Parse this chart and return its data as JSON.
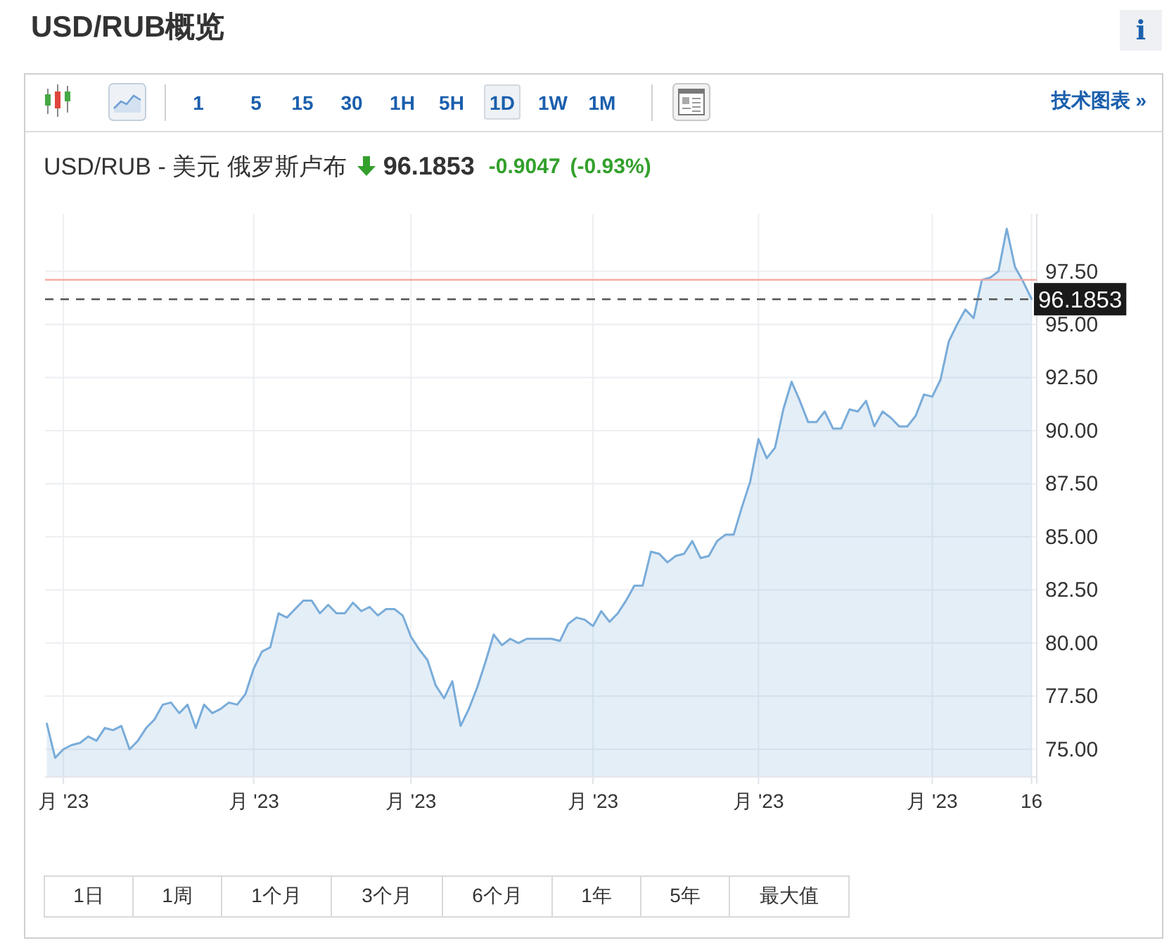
{
  "chart_data": {
    "type": "area",
    "title": "USD/RUB概览",
    "subtitle": "USD/RUB - 美元 俄罗斯卢布",
    "categories": [
      null,
      null,
      "月 '23",
      null,
      null,
      null,
      null,
      null,
      null,
      null,
      null,
      null,
      null,
      null,
      null,
      null,
      null,
      null,
      null,
      null,
      null,
      null,
      null,
      null,
      null,
      "月 '23",
      null,
      null,
      null,
      null,
      null,
      null,
      null,
      null,
      null,
      null,
      null,
      null,
      null,
      null,
      null,
      null,
      null,
      null,
      "月 '23",
      null,
      null,
      null,
      null,
      null,
      null,
      null,
      null,
      null,
      null,
      null,
      null,
      null,
      null,
      null,
      null,
      null,
      null,
      null,
      null,
      null,
      "月 '23",
      null,
      null,
      null,
      null,
      null,
      null,
      null,
      null,
      null,
      null,
      null,
      null,
      null,
      null,
      null,
      null,
      null,
      null,
      null,
      "月 '23",
      null,
      null,
      null,
      null,
      null,
      null,
      null,
      null,
      null,
      null,
      null,
      null,
      null,
      null,
      null,
      null,
      null,
      null,
      null,
      null,
      "月 '23",
      null,
      null,
      null,
      null,
      null,
      null,
      null,
      null,
      null,
      null,
      null,
      "16"
    ],
    "values": [
      76.2,
      74.6,
      75.0,
      75.2,
      75.3,
      75.6,
      75.4,
      76.0,
      75.9,
      76.1,
      75.0,
      75.4,
      76.0,
      76.4,
      77.1,
      77.2,
      76.7,
      77.1,
      76.0,
      77.1,
      76.7,
      76.9,
      77.2,
      77.1,
      77.6,
      78.8,
      79.6,
      79.8,
      81.4,
      81.2,
      81.6,
      82.0,
      82.0,
      81.4,
      81.8,
      81.4,
      81.4,
      81.9,
      81.5,
      81.7,
      81.3,
      81.6,
      81.6,
      81.3,
      80.3,
      79.7,
      79.2,
      78.0,
      77.4,
      78.2,
      76.1,
      76.9,
      77.9,
      79.1,
      80.4,
      79.9,
      80.2,
      80.0,
      80.2,
      80.2,
      80.2,
      80.2,
      80.1,
      80.9,
      81.2,
      81.1,
      80.8,
      81.5,
      81.0,
      81.4,
      82.0,
      82.7,
      82.7,
      84.3,
      84.2,
      83.8,
      84.1,
      84.2,
      84.8,
      84.0,
      84.1,
      84.8,
      85.1,
      85.1,
      86.4,
      87.6,
      89.6,
      88.7,
      89.2,
      91.0,
      92.3,
      91.4,
      90.4,
      90.4,
      90.9,
      90.1,
      90.1,
      91.0,
      90.9,
      91.4,
      90.2,
      90.9,
      90.6,
      90.2,
      90.2,
      90.7,
      91.7,
      91.6,
      92.4,
      94.2,
      95.0,
      95.7,
      95.3,
      97.1,
      97.2,
      97.5,
      99.5,
      97.7,
      97.0,
      96.2
    ],
    "color": "#79acd9",
    "ylim": [
      73.7,
      100.2
    ],
    "yticks": [
      {
        "value": 75,
        "label": "75.00"
      },
      {
        "value": 77.5,
        "label": "77.50"
      },
      {
        "value": 80,
        "label": "80.00"
      },
      {
        "value": 82.5,
        "label": "82.50"
      },
      {
        "value": 85,
        "label": "85.00"
      },
      {
        "value": 87.5,
        "label": "87.50"
      },
      {
        "value": 90,
        "label": "90.00"
      },
      {
        "value": 92.5,
        "label": "92.50"
      },
      {
        "value": 95,
        "label": "95.00"
      },
      {
        "value": 97.5,
        "label": "97.50"
      }
    ],
    "grid": true,
    "ref_lines": [
      {
        "axis": "y",
        "value": 97.1,
        "color": "#f6a39c"
      },
      {
        "axis": "y",
        "value": 96.1853,
        "label": "96.1853",
        "line_style": "dashed",
        "color": "#555555"
      }
    ],
    "annotations": [
      "96.1853",
      "-0.9047",
      "(-0.93%)",
      "i",
      "1",
      "5",
      "15",
      "30",
      "1H",
      "5H",
      "1D",
      "1W",
      "1M",
      "技术图表 »",
      "1日",
      "1周",
      "1个月",
      "3个月",
      "6个月",
      "1年",
      "5年",
      "最大值"
    ]
  }
}
